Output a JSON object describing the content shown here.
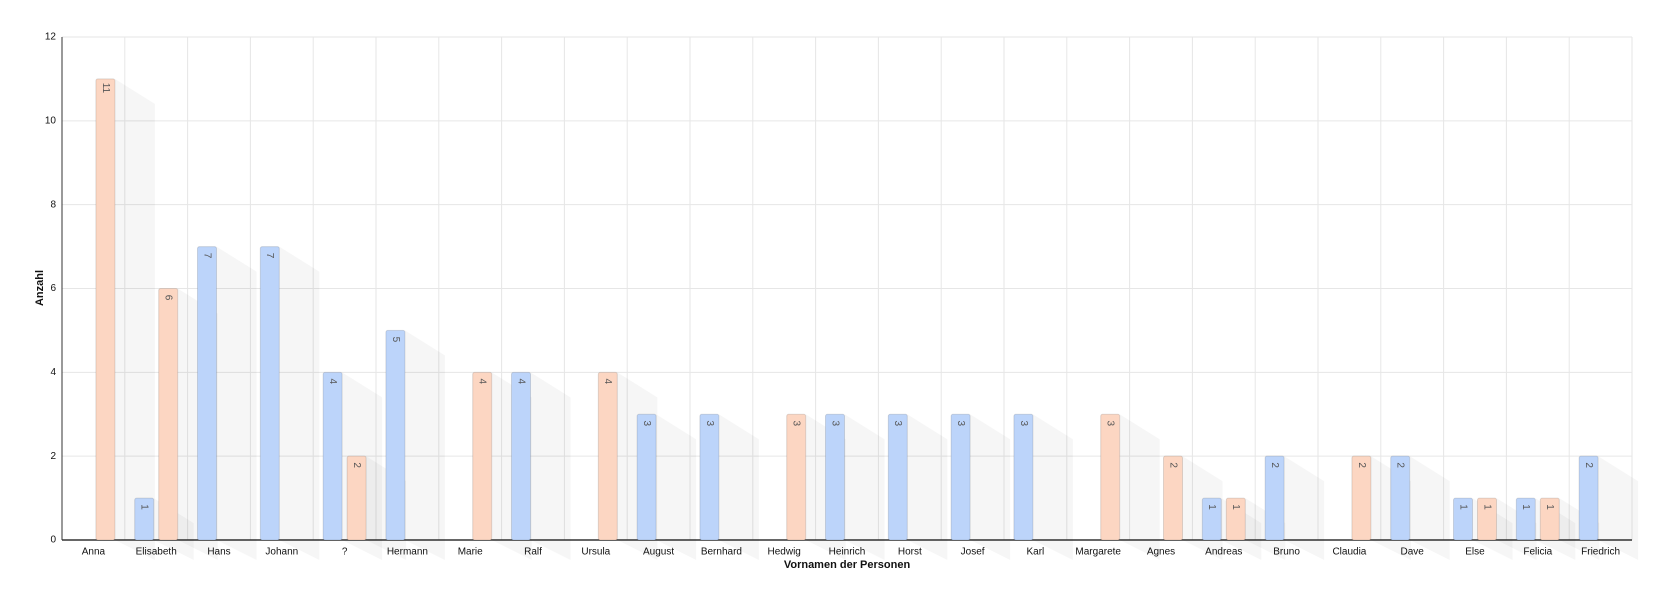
{
  "chart_data": {
    "type": "bar",
    "x_label": "Vornamen der Personen",
    "y_label": "Anzahl",
    "categories": [
      "Anna",
      "Elisabeth",
      "Hans",
      "Johann",
      "?",
      "Hermann",
      "Marie",
      "Ralf",
      "Ursula",
      "August",
      "Bernhard",
      "Hedwig",
      "Heinrich",
      "Horst",
      "Josef",
      "Karl",
      "Margarete",
      "Agnes",
      "Andreas",
      "Bruno",
      "Claudia",
      "Dave",
      "Else",
      "Felicia",
      "Friedrich"
    ],
    "series": [
      {
        "color": "#bcd4fa",
        "values": [
          null,
          1,
          7,
          7,
          4,
          5,
          null,
          4,
          null,
          3,
          3,
          null,
          3,
          3,
          3,
          3,
          null,
          null,
          1,
          2,
          null,
          2,
          1,
          1,
          2
        ]
      },
      {
        "color": "#fcd6c2",
        "values": [
          11,
          6,
          null,
          null,
          2,
          null,
          4,
          null,
          4,
          null,
          null,
          3,
          null,
          null,
          null,
          null,
          3,
          2,
          1,
          null,
          2,
          null,
          1,
          1,
          null
        ]
      }
    ],
    "ylim": [
      0,
      12
    ],
    "yticks": [
      0,
      2,
      4,
      6,
      8,
      10,
      12
    ],
    "grid": true,
    "data_labels": true
  }
}
